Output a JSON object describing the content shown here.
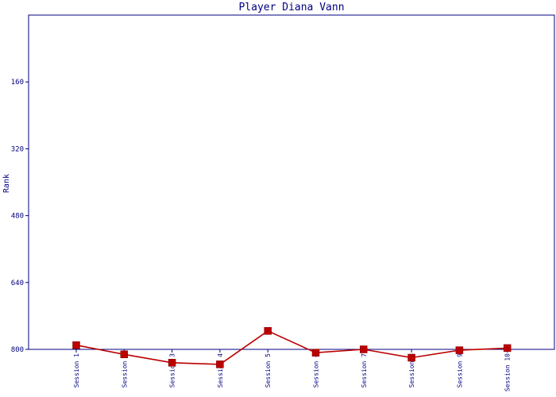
{
  "chart_data": {
    "type": "line",
    "title": "Player Diana Vann",
    "xlabel": "",
    "ylabel": "Rank",
    "categories": [
      "Session 1",
      "Session 2",
      "Session 3",
      "Session 4",
      "Session 5",
      "Session 6",
      "Session 7",
      "Session 8",
      "Session 9",
      "Session 10"
    ],
    "y_ticks": [
      "160",
      "320",
      "480",
      "640",
      "800"
    ],
    "ylim": [
      0,
      800
    ],
    "y_inverted": true,
    "series": [
      {
        "values": [
          790,
          812,
          832,
          836,
          756,
          808,
          800,
          820,
          802,
          797
        ]
      }
    ],
    "colors": {
      "frame": "#000080",
      "line": "#bb0000",
      "marker": "#bb0000"
    },
    "grid": false
  }
}
